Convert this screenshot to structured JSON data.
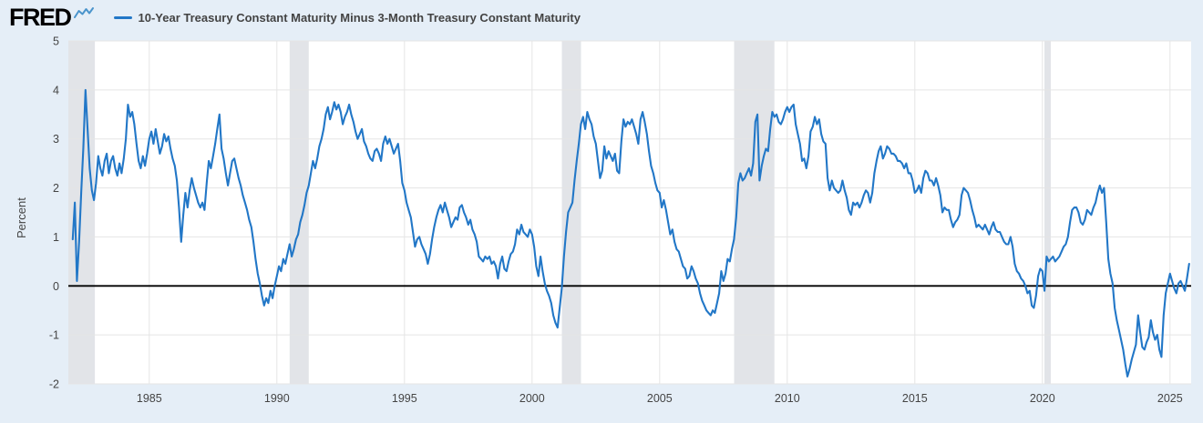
{
  "header": {
    "logo": "FRED",
    "series_label": "10-Year Treasury Constant Maturity Minus 3-Month Treasury Constant Maturity"
  },
  "colors": {
    "background": "#e5eef7",
    "plot_background": "#ffffff",
    "line": "#2277c7",
    "recession_band": "#e2e4e8",
    "gridline": "#e5e5e5",
    "zero_line": "#000000",
    "tick_text": "#444444",
    "legend_text": "#434343",
    "logo_icon": "#4a94cc",
    "logo_text": "#000000"
  },
  "chart_data": {
    "type": "line",
    "title": "10-Year Treasury Constant Maturity Minus 3-Month Treasury Constant Maturity",
    "xlabel": "",
    "ylabel": "Percent",
    "x_domain": [
      1981.83,
      2025.83
    ],
    "y_domain": [
      -2,
      5
    ],
    "y_ticks": [
      5,
      4,
      3,
      2,
      1,
      0,
      -1,
      -2
    ],
    "x_ticks": [
      1985,
      1990,
      1995,
      2000,
      2005,
      2010,
      2015,
      2020,
      2025
    ],
    "grid": true,
    "zero_line": 0,
    "legend_position": "top",
    "x_start_year": 1982,
    "points_per_year": 12,
    "recession_bands": [
      {
        "start": 1981.5,
        "end": 1982.87
      },
      {
        "start": 1990.5,
        "end": 1991.25
      },
      {
        "start": 2001.17,
        "end": 2001.92
      },
      {
        "start": 2007.92,
        "end": 2009.5
      },
      {
        "start": 2020.08,
        "end": 2020.33
      }
    ],
    "values": [
      0.95,
      1.7,
      0.1,
      0.9,
      1.9,
      2.8,
      4.0,
      3.2,
      2.4,
      1.95,
      1.75,
      2.1,
      2.65,
      2.4,
      2.25,
      2.55,
      2.7,
      2.3,
      2.55,
      2.65,
      2.4,
      2.25,
      2.5,
      2.3,
      2.6,
      3.0,
      3.7,
      3.45,
      3.55,
      3.3,
      2.9,
      2.55,
      2.4,
      2.65,
      2.45,
      2.7,
      3.0,
      3.15,
      2.9,
      3.2,
      2.95,
      2.7,
      2.85,
      3.1,
      2.95,
      3.05,
      2.8,
      2.6,
      2.45,
      2.15,
      1.6,
      0.9,
      1.45,
      1.9,
      1.6,
      1.95,
      2.2,
      2.0,
      1.85,
      1.7,
      1.6,
      1.7,
      1.55,
      2.1,
      2.55,
      2.4,
      2.65,
      2.9,
      3.2,
      3.5,
      2.8,
      2.6,
      2.3,
      2.05,
      2.3,
      2.55,
      2.6,
      2.4,
      2.2,
      2.05,
      1.85,
      1.7,
      1.55,
      1.35,
      1.2,
      0.9,
      0.55,
      0.25,
      0.05,
      -0.2,
      -0.4,
      -0.25,
      -0.35,
      -0.1,
      -0.25,
      0.0,
      0.2,
      0.4,
      0.3,
      0.55,
      0.45,
      0.65,
      0.85,
      0.6,
      0.75,
      0.95,
      1.05,
      1.3,
      1.45,
      1.65,
      1.9,
      2.05,
      2.3,
      2.55,
      2.4,
      2.6,
      2.85,
      3.0,
      3.2,
      3.5,
      3.65,
      3.4,
      3.55,
      3.75,
      3.6,
      3.7,
      3.55,
      3.3,
      3.45,
      3.55,
      3.7,
      3.5,
      3.35,
      3.15,
      3.0,
      3.1,
      3.2,
      2.95,
      2.85,
      2.7,
      2.6,
      2.55,
      2.75,
      2.8,
      2.7,
      2.55,
      2.9,
      3.05,
      2.9,
      3.0,
      2.85,
      2.7,
      2.8,
      2.9,
      2.55,
      2.1,
      1.95,
      1.7,
      1.55,
      1.4,
      1.1,
      0.8,
      0.95,
      1.0,
      0.85,
      0.75,
      0.65,
      0.45,
      0.65,
      0.95,
      1.2,
      1.4,
      1.55,
      1.65,
      1.5,
      1.7,
      1.55,
      1.4,
      1.2,
      1.3,
      1.4,
      1.35,
      1.6,
      1.65,
      1.5,
      1.4,
      1.25,
      1.35,
      1.15,
      1.05,
      0.9,
      0.6,
      0.55,
      0.5,
      0.6,
      0.55,
      0.6,
      0.45,
      0.5,
      0.4,
      0.15,
      0.45,
      0.6,
      0.35,
      0.3,
      0.5,
      0.65,
      0.7,
      0.85,
      1.15,
      1.05,
      1.25,
      1.1,
      1.05,
      1.0,
      1.15,
      1.05,
      0.8,
      0.4,
      0.2,
      0.6,
      0.3,
      0.05,
      -0.1,
      -0.2,
      -0.35,
      -0.6,
      -0.75,
      -0.85,
      -0.45,
      -0.05,
      0.6,
      1.1,
      1.5,
      1.6,
      1.7,
      2.15,
      2.55,
      2.9,
      3.3,
      3.45,
      3.2,
      3.55,
      3.4,
      3.3,
      3.05,
      2.9,
      2.55,
      2.2,
      2.35,
      2.85,
      2.6,
      2.75,
      2.65,
      2.55,
      2.7,
      2.35,
      2.3,
      2.95,
      3.4,
      3.25,
      3.35,
      3.3,
      3.4,
      3.25,
      3.1,
      2.9,
      3.4,
      3.55,
      3.35,
      3.1,
      2.75,
      2.45,
      2.3,
      2.1,
      1.95,
      1.9,
      1.6,
      1.75,
      1.55,
      1.3,
      1.05,
      1.15,
      0.9,
      0.75,
      0.7,
      0.55,
      0.4,
      0.35,
      0.15,
      0.2,
      0.4,
      0.3,
      0.15,
      0.05,
      -0.15,
      -0.3,
      -0.4,
      -0.5,
      -0.55,
      -0.6,
      -0.5,
      -0.55,
      -0.35,
      -0.15,
      0.3,
      0.1,
      0.25,
      0.55,
      0.5,
      0.75,
      0.95,
      1.4,
      2.1,
      2.3,
      2.15,
      2.2,
      2.3,
      2.4,
      2.25,
      2.5,
      3.35,
      3.5,
      2.15,
      2.45,
      2.65,
      2.8,
      2.75,
      3.2,
      3.55,
      3.45,
      3.5,
      3.35,
      3.3,
      3.4,
      3.55,
      3.65,
      3.55,
      3.65,
      3.7,
      3.3,
      3.1,
      2.9,
      2.55,
      2.6,
      2.4,
      2.65,
      3.15,
      3.25,
      3.45,
      3.3,
      3.4,
      3.1,
      2.95,
      2.9,
      2.2,
      1.95,
      2.15,
      2.0,
      1.95,
      1.9,
      1.95,
      2.15,
      1.95,
      1.8,
      1.55,
      1.45,
      1.7,
      1.65,
      1.7,
      1.6,
      1.7,
      1.85,
      1.95,
      1.9,
      1.7,
      1.9,
      2.3,
      2.55,
      2.75,
      2.85,
      2.6,
      2.7,
      2.85,
      2.8,
      2.7,
      2.7,
      2.65,
      2.55,
      2.55,
      2.5,
      2.4,
      2.5,
      2.3,
      2.3,
      2.15,
      1.9,
      1.95,
      2.05,
      1.9,
      2.2,
      2.35,
      2.3,
      2.15,
      2.15,
      2.05,
      2.2,
      2.05,
      1.85,
      1.5,
      1.6,
      1.55,
      1.55,
      1.35,
      1.2,
      1.3,
      1.35,
      1.45,
      1.85,
      2.0,
      1.95,
      1.9,
      1.75,
      1.55,
      1.4,
      1.2,
      1.25,
      1.2,
      1.15,
      1.25,
      1.15,
      1.05,
      1.2,
      1.3,
      1.15,
      1.1,
      1.1,
      1.0,
      0.9,
      0.85,
      0.85,
      1.0,
      0.8,
      0.45,
      0.3,
      0.25,
      0.15,
      0.1,
      0.0,
      -0.15,
      -0.1,
      -0.4,
      -0.45,
      -0.2,
      0.2,
      0.35,
      0.3,
      -0.1,
      0.6,
      0.5,
      0.55,
      0.6,
      0.5,
      0.55,
      0.6,
      0.7,
      0.8,
      0.85,
      1.0,
      1.3,
      1.55,
      1.6,
      1.6,
      1.5,
      1.3,
      1.25,
      1.35,
      1.55,
      1.5,
      1.45,
      1.6,
      1.7,
      1.9,
      2.05,
      1.9,
      2.0,
      1.3,
      0.55,
      0.25,
      0.05,
      -0.45,
      -0.7,
      -0.9,
      -1.1,
      -1.3,
      -1.6,
      -1.85,
      -1.7,
      -1.5,
      -1.35,
      -1.2,
      -0.6,
      -0.95,
      -1.25,
      -1.3,
      -1.15,
      -1.05,
      -0.7,
      -0.95,
      -1.1,
      -1.0,
      -1.3,
      -1.45,
      -0.6,
      -0.15,
      0.05,
      0.25,
      0.1,
      -0.05,
      -0.15,
      0.05,
      0.1,
      0.0,
      -0.1,
      0.15,
      0.45
    ]
  }
}
